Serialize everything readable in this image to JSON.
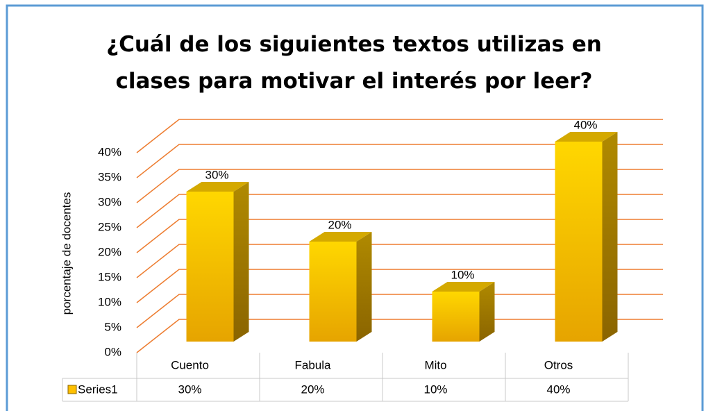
{
  "chart_data": {
    "type": "bar3d",
    "title": "¿Cuál de los siguientes textos utilizas en clases para motivar el interés por leer?",
    "ylabel": "porcentaje de docentes",
    "categories": [
      "Cuento",
      "Fabula",
      "Mito",
      "Otros"
    ],
    "series": [
      {
        "name": "Series1",
        "color": "#ffc000",
        "values": [
          30,
          20,
          10,
          40
        ],
        "value_labels": [
          "30%",
          "20%",
          "10%",
          "40%"
        ]
      }
    ],
    "ylim": [
      0,
      40
    ],
    "yticks": [
      {
        "value": 0,
        "label": "0%"
      },
      {
        "value": 5,
        "label": "5%"
      },
      {
        "value": 10,
        "label": "10%"
      },
      {
        "value": 15,
        "label": "15%"
      },
      {
        "value": 20,
        "label": "20%"
      },
      {
        "value": 25,
        "label": "25%"
      },
      {
        "value": 30,
        "label": "30%"
      },
      {
        "value": 35,
        "label": "35%"
      },
      {
        "value": 40,
        "label": "40%"
      }
    ],
    "grid": true
  }
}
